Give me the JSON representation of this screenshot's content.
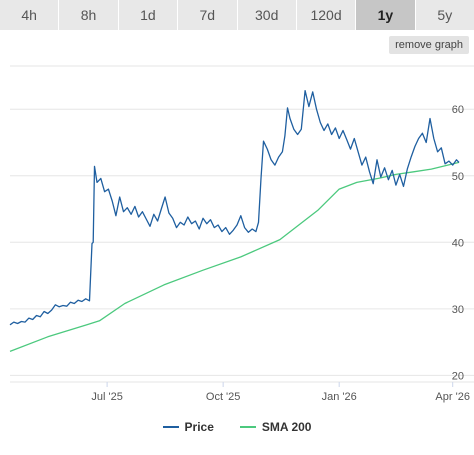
{
  "timeframes": [
    "4h",
    "8h",
    "1d",
    "7d",
    "30d",
    "120d",
    "1y",
    "5y"
  ],
  "active_timeframe": "1y",
  "remove_graph_label": "remove graph",
  "colors": {
    "price": "#1f5fa0",
    "sma": "#4cc97e"
  },
  "chart_data": {
    "type": "line",
    "title": "",
    "xlabel": "",
    "ylabel": "",
    "x_ticks": [
      {
        "label": "Jul '25",
        "date": "2025-07-01"
      },
      {
        "label": "Oct '25",
        "date": "2025-10-01"
      },
      {
        "label": "Jan '26",
        "date": "2026-01-01"
      },
      {
        "label": "Apr '26",
        "date": "2026-04-01"
      }
    ],
    "y_ticks": [
      20,
      30,
      40,
      50,
      60
    ],
    "ylim": [
      19,
      68
    ],
    "xlim": [
      "2025-04-15",
      "2026-04-06"
    ],
    "grid": true,
    "legend_position": "bottom-center",
    "series": [
      {
        "name": "Price",
        "color": "#1f5fa0",
        "points": [
          [
            "2025-04-15",
            27.6
          ],
          [
            "2025-04-18",
            28.0
          ],
          [
            "2025-04-21",
            27.8
          ],
          [
            "2025-04-24",
            28.1
          ],
          [
            "2025-04-27",
            28.0
          ],
          [
            "2025-04-30",
            28.6
          ],
          [
            "2025-05-03",
            28.4
          ],
          [
            "2025-05-06",
            29.0
          ],
          [
            "2025-05-09",
            28.8
          ],
          [
            "2025-05-12",
            29.6
          ],
          [
            "2025-05-15",
            29.3
          ],
          [
            "2025-05-18",
            29.8
          ],
          [
            "2025-05-21",
            30.6
          ],
          [
            "2025-05-24",
            30.3
          ],
          [
            "2025-05-27",
            30.5
          ],
          [
            "2025-05-30",
            30.4
          ],
          [
            "2025-06-02",
            31.0
          ],
          [
            "2025-06-05",
            30.8
          ],
          [
            "2025-06-08",
            31.3
          ],
          [
            "2025-06-11",
            31.1
          ],
          [
            "2025-06-14",
            31.5
          ],
          [
            "2025-06-17",
            31.2
          ],
          [
            "2025-06-19",
            39.8
          ],
          [
            "2025-06-20",
            40.0
          ],
          [
            "2025-06-21",
            51.4
          ],
          [
            "2025-06-23",
            49.0
          ],
          [
            "2025-06-26",
            49.6
          ],
          [
            "2025-06-29",
            47.6
          ],
          [
            "2025-07-02",
            48.0
          ],
          [
            "2025-07-05",
            46.2
          ],
          [
            "2025-07-08",
            44.0
          ],
          [
            "2025-07-11",
            46.8
          ],
          [
            "2025-07-14",
            44.6
          ],
          [
            "2025-07-17",
            45.2
          ],
          [
            "2025-07-20",
            44.2
          ],
          [
            "2025-07-23",
            45.4
          ],
          [
            "2025-07-26",
            43.8
          ],
          [
            "2025-07-29",
            44.6
          ],
          [
            "2025-08-01",
            43.5
          ],
          [
            "2025-08-04",
            42.4
          ],
          [
            "2025-08-07",
            44.2
          ],
          [
            "2025-08-10",
            43.2
          ],
          [
            "2025-08-13",
            45.0
          ],
          [
            "2025-08-16",
            46.8
          ],
          [
            "2025-08-19",
            44.4
          ],
          [
            "2025-08-22",
            43.6
          ],
          [
            "2025-08-25",
            42.2
          ],
          [
            "2025-08-28",
            43.0
          ],
          [
            "2025-08-31",
            42.6
          ],
          [
            "2025-09-03",
            43.8
          ],
          [
            "2025-09-06",
            42.8
          ],
          [
            "2025-09-09",
            43.2
          ],
          [
            "2025-09-12",
            42.0
          ],
          [
            "2025-09-15",
            43.6
          ],
          [
            "2025-09-18",
            42.8
          ],
          [
            "2025-09-21",
            43.4
          ],
          [
            "2025-09-24",
            42.2
          ],
          [
            "2025-09-27",
            42.6
          ],
          [
            "2025-09-30",
            41.6
          ],
          [
            "2025-10-03",
            42.2
          ],
          [
            "2025-10-06",
            41.2
          ],
          [
            "2025-10-09",
            41.8
          ],
          [
            "2025-10-12",
            42.6
          ],
          [
            "2025-10-15",
            44.0
          ],
          [
            "2025-10-18",
            42.2
          ],
          [
            "2025-10-21",
            41.5
          ],
          [
            "2025-10-24",
            42.0
          ],
          [
            "2025-10-27",
            41.6
          ],
          [
            "2025-10-29",
            43.0
          ],
          [
            "2025-10-31",
            49.6
          ],
          [
            "2025-11-02",
            55.2
          ],
          [
            "2025-11-05",
            54.0
          ],
          [
            "2025-11-08",
            52.4
          ],
          [
            "2025-11-11",
            51.6
          ],
          [
            "2025-11-14",
            52.8
          ],
          [
            "2025-11-17",
            53.6
          ],
          [
            "2025-11-19",
            56.0
          ],
          [
            "2025-11-21",
            60.2
          ],
          [
            "2025-11-23",
            58.6
          ],
          [
            "2025-11-26",
            57.0
          ],
          [
            "2025-11-29",
            56.2
          ],
          [
            "2025-12-02",
            57.0
          ],
          [
            "2025-12-05",
            62.8
          ],
          [
            "2025-12-08",
            60.4
          ],
          [
            "2025-12-11",
            62.6
          ],
          [
            "2025-12-14",
            60.0
          ],
          [
            "2025-12-17",
            58.0
          ],
          [
            "2025-12-20",
            56.8
          ],
          [
            "2025-12-23",
            57.8
          ],
          [
            "2025-12-26",
            56.2
          ],
          [
            "2025-12-29",
            57.2
          ],
          [
            "2026-01-01",
            55.6
          ],
          [
            "2026-01-04",
            56.8
          ],
          [
            "2026-01-07",
            55.4
          ],
          [
            "2026-01-10",
            54.0
          ],
          [
            "2026-01-13",
            55.6
          ],
          [
            "2026-01-16",
            53.6
          ],
          [
            "2026-01-19",
            51.6
          ],
          [
            "2026-01-22",
            52.8
          ],
          [
            "2026-01-25",
            50.6
          ],
          [
            "2026-01-28",
            48.8
          ],
          [
            "2026-01-31",
            52.4
          ],
          [
            "2026-02-03",
            49.8
          ],
          [
            "2026-02-06",
            51.2
          ],
          [
            "2026-02-09",
            49.4
          ],
          [
            "2026-02-12",
            50.8
          ],
          [
            "2026-02-15",
            48.6
          ],
          [
            "2026-02-18",
            50.2
          ],
          [
            "2026-02-21",
            48.4
          ],
          [
            "2026-02-24",
            51.0
          ],
          [
            "2026-02-27",
            52.8
          ],
          [
            "2026-03-02",
            54.4
          ],
          [
            "2026-03-05",
            55.6
          ],
          [
            "2026-03-08",
            56.4
          ],
          [
            "2026-03-11",
            55.0
          ],
          [
            "2026-03-14",
            58.6
          ],
          [
            "2026-03-17",
            55.6
          ],
          [
            "2026-03-20",
            53.6
          ],
          [
            "2026-03-23",
            54.2
          ],
          [
            "2026-03-26",
            51.8
          ],
          [
            "2026-03-29",
            52.2
          ],
          [
            "2026-04-01",
            51.6
          ],
          [
            "2026-04-04",
            52.4
          ],
          [
            "2026-04-06",
            52.0
          ]
        ]
      },
      {
        "name": "SMA 200",
        "color": "#4cc97e",
        "points": [
          [
            "2025-04-15",
            23.6
          ],
          [
            "2025-05-15",
            25.8
          ],
          [
            "2025-06-15",
            27.6
          ],
          [
            "2025-06-25",
            28.2
          ],
          [
            "2025-07-15",
            30.8
          ],
          [
            "2025-08-15",
            33.6
          ],
          [
            "2025-09-15",
            35.8
          ],
          [
            "2025-10-15",
            37.8
          ],
          [
            "2025-11-15",
            40.4
          ],
          [
            "2025-12-15",
            44.8
          ],
          [
            "2026-01-01",
            48.0
          ],
          [
            "2026-01-15",
            49.0
          ],
          [
            "2026-02-01",
            49.6
          ],
          [
            "2026-02-15",
            50.2
          ],
          [
            "2026-03-01",
            50.6
          ],
          [
            "2026-03-15",
            51.0
          ],
          [
            "2026-04-06",
            52.0
          ]
        ]
      }
    ]
  }
}
